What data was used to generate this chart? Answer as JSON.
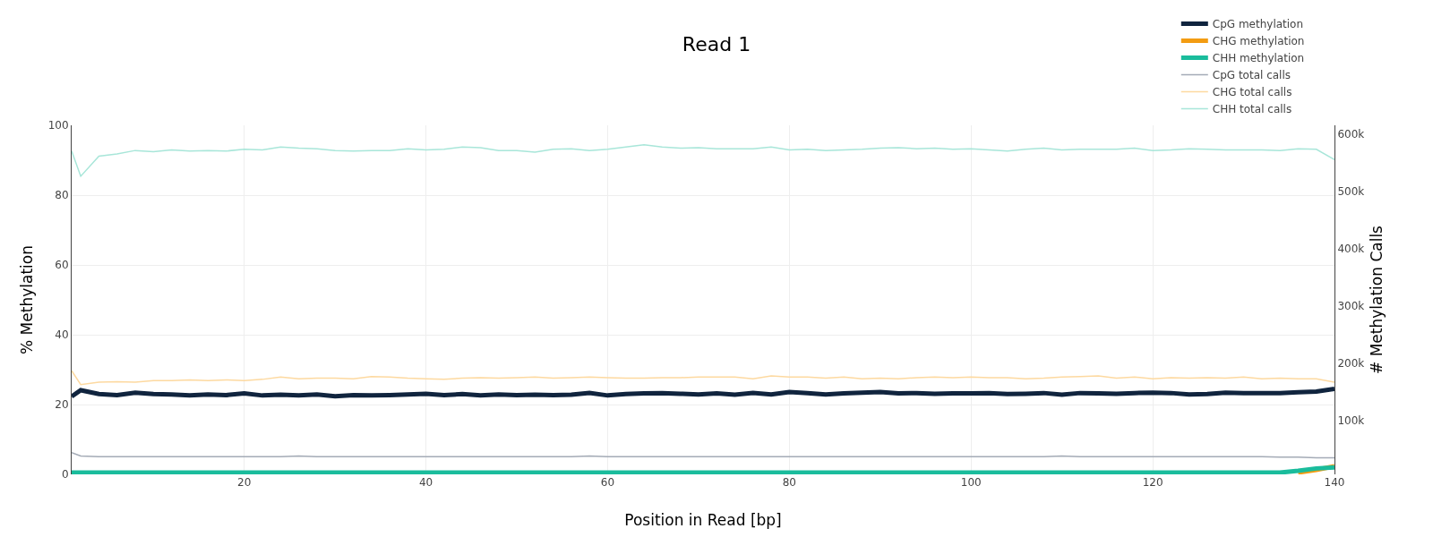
{
  "chart_data": {
    "type": "line",
    "title": "Read 1",
    "xlabel": "Position in Read [bp]",
    "ylabel": "% Methylation",
    "y2label": "# Methylation Calls",
    "x": [
      1,
      2,
      4,
      6,
      8,
      10,
      12,
      14,
      16,
      18,
      20,
      22,
      24,
      26,
      28,
      30,
      32,
      34,
      36,
      38,
      40,
      42,
      44,
      46,
      48,
      50,
      52,
      54,
      56,
      58,
      60,
      62,
      64,
      66,
      68,
      70,
      72,
      74,
      76,
      78,
      80,
      82,
      84,
      86,
      88,
      90,
      92,
      94,
      96,
      98,
      100,
      102,
      104,
      106,
      108,
      110,
      112,
      114,
      116,
      118,
      120,
      122,
      124,
      126,
      128,
      130,
      132,
      134,
      136,
      138,
      140
    ],
    "xlim": [
      1,
      140
    ],
    "xticks": [
      20,
      40,
      60,
      80,
      100,
      120,
      140
    ],
    "ylim": [
      0,
      100
    ],
    "yticks": [
      0,
      20,
      40,
      60,
      80,
      100
    ],
    "y2lim": [
      6000,
      616000
    ],
    "y2ticks": [
      {
        "value": 100000,
        "label": "100k"
      },
      {
        "value": 200000,
        "label": "200k"
      },
      {
        "value": 300000,
        "label": "300k"
      },
      {
        "value": 400000,
        "label": "400k"
      },
      {
        "value": 500000,
        "label": "500k"
      },
      {
        "value": 600000,
        "label": "600k"
      }
    ],
    "grid": true,
    "legend": "top right",
    "marker": "none",
    "line_style": "solid",
    "series": [
      {
        "name": "CpG methylation",
        "color": "#10243e",
        "values": [
          22.3,
          24.1,
          23.0,
          22.7,
          23.4,
          23.0,
          22.9,
          22.6,
          22.9,
          22.7,
          23.2,
          22.6,
          22.8,
          22.6,
          22.9,
          22.4,
          22.7,
          22.6,
          22.7,
          22.9,
          23.1,
          22.7,
          23.0,
          22.6,
          22.9,
          22.7,
          22.8,
          22.7,
          22.8,
          23.3,
          22.6,
          23.0,
          23.2,
          23.3,
          23.1,
          22.9,
          23.2,
          22.8,
          23.3,
          22.9,
          23.6,
          23.3,
          22.9,
          23.2,
          23.4,
          23.6,
          23.2,
          23.3,
          23.1,
          23.2,
          23.2,
          23.3,
          23.0,
          23.1,
          23.3,
          22.8,
          23.3,
          23.2,
          23.1,
          23.3,
          23.4,
          23.3,
          22.9,
          23.0,
          23.4,
          23.3,
          23.3,
          23.3,
          23.5,
          23.7,
          24.5
        ]
      },
      {
        "name": "CHG methylation",
        "color": "#f39c12",
        "values": [
          null,
          null,
          null,
          null,
          null,
          null,
          null,
          null,
          null,
          null,
          null,
          null,
          null,
          null,
          null,
          null,
          null,
          null,
          null,
          null,
          null,
          null,
          null,
          null,
          null,
          null,
          null,
          null,
          null,
          null,
          null,
          null,
          null,
          null,
          null,
          null,
          null,
          null,
          null,
          null,
          null,
          null,
          null,
          null,
          null,
          null,
          null,
          null,
          null,
          null,
          null,
          null,
          null,
          null,
          null,
          null,
          null,
          null,
          null,
          null,
          null,
          null,
          null,
          null,
          null,
          null,
          null,
          null,
          0.5,
          1.3,
          2.3
        ]
      },
      {
        "name": "CHH methylation",
        "color": "#1abc9c",
        "values": [
          0.5,
          0.5,
          0.5,
          0.5,
          0.5,
          0.5,
          0.5,
          0.5,
          0.5,
          0.5,
          0.5,
          0.5,
          0.5,
          0.5,
          0.5,
          0.5,
          0.5,
          0.5,
          0.5,
          0.5,
          0.5,
          0.5,
          0.5,
          0.5,
          0.5,
          0.5,
          0.5,
          0.5,
          0.5,
          0.5,
          0.5,
          0.5,
          0.5,
          0.5,
          0.5,
          0.5,
          0.5,
          0.5,
          0.5,
          0.5,
          0.5,
          0.5,
          0.5,
          0.5,
          0.5,
          0.5,
          0.5,
          0.5,
          0.5,
          0.5,
          0.5,
          0.5,
          0.5,
          0.5,
          0.5,
          0.5,
          0.5,
          0.5,
          0.5,
          0.5,
          0.5,
          0.5,
          0.5,
          0.5,
          0.5,
          0.5,
          0.5,
          0.5,
          1.0,
          1.7,
          2.0
        ]
      },
      {
        "name": "CpG total calls",
        "color": "#a4abb6",
        "axis": "y2",
        "values": [
          44000,
          38000,
          37000,
          37000,
          37000,
          37000,
          37000,
          37000,
          37000,
          37000,
          37000,
          37000,
          37000,
          38000,
          37000,
          37000,
          37000,
          37000,
          37000,
          37000,
          37000,
          37000,
          37000,
          37000,
          37000,
          37000,
          37000,
          37000,
          37000,
          38000,
          37000,
          37000,
          37000,
          37000,
          37000,
          37000,
          37000,
          37000,
          37000,
          37000,
          37000,
          37000,
          37000,
          37000,
          37000,
          37000,
          37000,
          37000,
          37000,
          37000,
          37000,
          37000,
          37000,
          37000,
          37000,
          38000,
          37000,
          37000,
          37000,
          37000,
          37000,
          37000,
          37000,
          37000,
          37000,
          37000,
          37000,
          36000,
          36000,
          35000,
          35000
        ]
      },
      {
        "name": "CHG total calls",
        "color": "#fdd9a0",
        "axis": "y2",
        "values": [
          187000,
          163000,
          167000,
          168000,
          167000,
          170000,
          170000,
          171000,
          170000,
          171000,
          170000,
          172000,
          176000,
          173000,
          174000,
          174000,
          173000,
          177000,
          176000,
          174000,
          173000,
          172000,
          174000,
          175000,
          174000,
          175000,
          176000,
          174000,
          175000,
          176000,
          175000,
          174000,
          174000,
          175000,
          175000,
          176000,
          176000,
          176000,
          173000,
          178000,
          176000,
          176000,
          174000,
          176000,
          173000,
          174000,
          173000,
          175000,
          176000,
          175000,
          176000,
          175000,
          175000,
          173000,
          174000,
          176000,
          177000,
          178000,
          174000,
          176000,
          173000,
          175000,
          174000,
          175000,
          174000,
          176000,
          173000,
          174000,
          173000,
          173000,
          167000
        ]
      },
      {
        "name": "CHH total calls",
        "color": "#a8e6d9",
        "axis": "y2",
        "values": [
          571000,
          527000,
          562000,
          566000,
          572000,
          570000,
          573000,
          571000,
          572000,
          571000,
          574000,
          573000,
          578000,
          576000,
          575000,
          572000,
          571000,
          572000,
          572000,
          575000,
          573000,
          574000,
          578000,
          577000,
          572000,
          572000,
          569000,
          574000,
          575000,
          572000,
          574000,
          578000,
          582000,
          578000,
          576000,
          577000,
          575000,
          575000,
          575000,
          578000,
          573000,
          574000,
          572000,
          573000,
          574000,
          576000,
          577000,
          575000,
          576000,
          574000,
          575000,
          573000,
          571000,
          574000,
          576000,
          573000,
          574000,
          574000,
          574000,
          576000,
          572000,
          573000,
          575000,
          574000,
          573000,
          573000,
          573000,
          572000,
          575000,
          574000,
          556000
        ]
      }
    ]
  }
}
